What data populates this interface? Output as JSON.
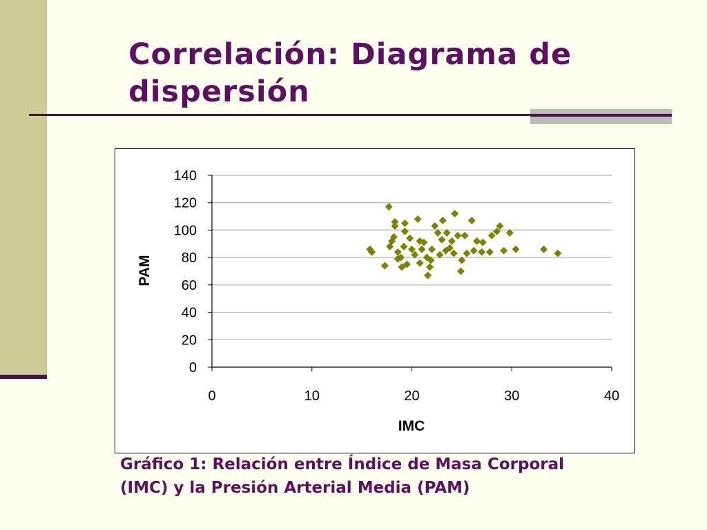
{
  "slide": {
    "title": "Correlación:  Diagrama  de dispersión",
    "caption": "Gráfico 1: Relación entre Índice de Masa Corporal (IMC)  y la Presión Arterial Media (PAM)"
  },
  "colors": {
    "title": "#5c1060",
    "sidebar": "#cccc99",
    "marker": "#808000",
    "background": "#fffff0"
  },
  "chart_data": {
    "type": "scatter",
    "title": "",
    "xlabel": "IMC",
    "ylabel": "PAM",
    "xlim": [
      0,
      40
    ],
    "ylim": [
      0,
      140
    ],
    "xticks": [
      "0",
      "10",
      "20",
      "30",
      "40"
    ],
    "yticks": [
      "0",
      "20",
      "40",
      "60",
      "80",
      "100",
      "120",
      "140"
    ],
    "grid": "horizontal",
    "legend": "none",
    "marker": "diamond",
    "series": [
      {
        "points": [
          [
            15.8,
            86
          ],
          [
            16.0,
            84
          ],
          [
            17.3,
            74
          ],
          [
            17.7,
            117
          ],
          [
            17.8,
            88
          ],
          [
            18.0,
            92
          ],
          [
            18.3,
            103
          ],
          [
            18.3,
            106
          ],
          [
            18.6,
            84
          ],
          [
            18.6,
            79
          ],
          [
            18.9,
            80
          ],
          [
            19.0,
            73
          ],
          [
            19.2,
            88
          ],
          [
            19.3,
            105
          ],
          [
            19.3,
            99
          ],
          [
            19.8,
            94
          ],
          [
            20.0,
            86
          ],
          [
            20.3,
            82
          ],
          [
            20.6,
            108
          ],
          [
            20.8,
            76
          ],
          [
            21.0,
            86
          ],
          [
            21.2,
            91
          ],
          [
            21.5,
            80
          ],
          [
            21.6,
            67
          ],
          [
            21.8,
            73
          ],
          [
            22.0,
            86
          ],
          [
            22.3,
            103
          ],
          [
            22.6,
            98
          ],
          [
            22.8,
            82
          ],
          [
            23.0,
            93
          ],
          [
            23.1,
            107
          ],
          [
            23.5,
            98
          ],
          [
            23.8,
            87
          ],
          [
            24.0,
            92
          ],
          [
            24.3,
            112
          ],
          [
            24.6,
            96
          ],
          [
            24.9,
            70
          ],
          [
            25.0,
            78
          ],
          [
            25.5,
            83
          ],
          [
            26.0,
            107
          ],
          [
            26.5,
            92
          ],
          [
            27.0,
            84
          ],
          [
            27.1,
            91
          ],
          [
            27.8,
            84
          ],
          [
            28.0,
            96
          ],
          [
            28.5,
            99
          ],
          [
            28.8,
            103
          ],
          [
            29.2,
            85
          ],
          [
            29.8,
            98
          ],
          [
            30.4,
            86
          ],
          [
            33.2,
            86
          ],
          [
            34.6,
            83
          ],
          [
            18.2,
            95
          ],
          [
            19.5,
            75
          ],
          [
            20.8,
            92
          ],
          [
            21.9,
            78
          ],
          [
            23.4,
            85
          ],
          [
            24.2,
            83
          ],
          [
            25.3,
            96
          ],
          [
            26.2,
            85
          ]
        ]
      }
    ]
  }
}
